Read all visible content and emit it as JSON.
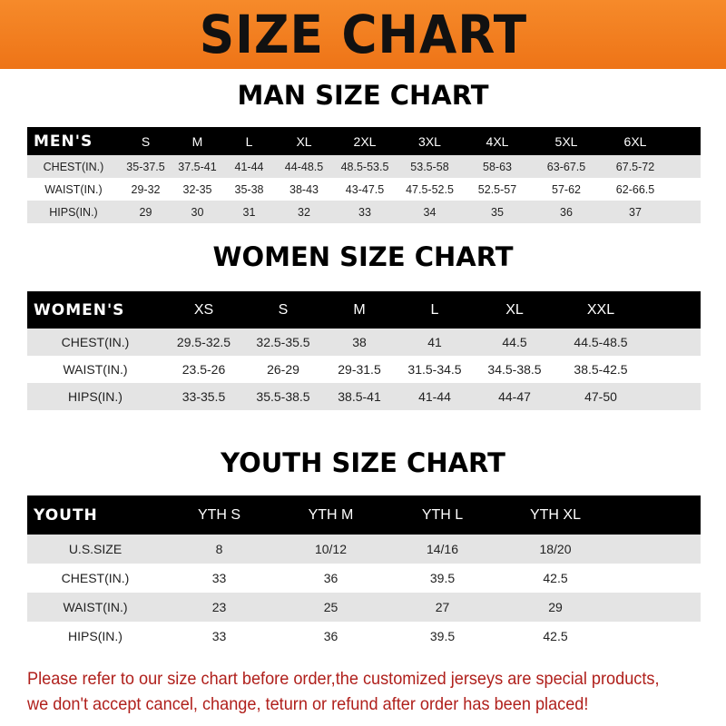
{
  "banner_title": "SIZE CHART",
  "men": {
    "heading": "MAN SIZE CHART",
    "header": [
      "MEN'S",
      "S",
      "M",
      "L",
      "XL",
      "2XL",
      "3XL",
      "4XL",
      "5XL",
      "6XL"
    ],
    "rows": [
      [
        "CHEST(IN.)",
        "35-37.5",
        "37.5-41",
        "41-44",
        "44-48.5",
        "48.5-53.5",
        "53.5-58",
        "58-63",
        "63-67.5",
        "67.5-72"
      ],
      [
        "WAIST(IN.)",
        "29-32",
        "32-35",
        "35-38",
        "38-43",
        "43-47.5",
        "47.5-52.5",
        "52.5-57",
        "57-62",
        "62-66.5"
      ],
      [
        "HIPS(IN.)",
        "29",
        "30",
        "31",
        "32",
        "33",
        "34",
        "35",
        "36",
        "37"
      ]
    ]
  },
  "women": {
    "heading": "WOMEN SIZE CHART",
    "header": [
      "WOMEN'S",
      "XS",
      "S",
      "M",
      "L",
      "XL",
      "XXL"
    ],
    "rows": [
      [
        "CHEST(IN.)",
        "29.5-32.5",
        "32.5-35.5",
        "38",
        "41",
        "44.5",
        "44.5-48.5"
      ],
      [
        "WAIST(IN.)",
        "23.5-26",
        "26-29",
        "29-31.5",
        "31.5-34.5",
        "34.5-38.5",
        "38.5-42.5"
      ],
      [
        "HIPS(IN.)",
        "33-35.5",
        "35.5-38.5",
        "38.5-41",
        "41-44",
        "44-47",
        "47-50"
      ]
    ]
  },
  "youth": {
    "heading": "YOUTH SIZE CHART",
    "header": [
      "YOUTH",
      "YTH S",
      "YTH M",
      "YTH L",
      "YTH XL"
    ],
    "rows": [
      [
        "U.S.SIZE",
        "8",
        "10/12",
        "14/16",
        "18/20"
      ],
      [
        "CHEST(IN.)",
        "33",
        "36",
        "39.5",
        "42.5"
      ],
      [
        "WAIST(IN.)",
        "23",
        "25",
        "27",
        "29"
      ],
      [
        "HIPS(IN.)",
        "33",
        "36",
        "39.5",
        "42.5"
      ]
    ]
  },
  "notice": {
    "line1": "Please refer to our size chart before order,the customized jerseys are special products,",
    "line2": "we don't accept cancel, change, teturn or refund after order has been placed!"
  },
  "colors": {
    "banner": "#f07a1a",
    "header_row": "#000000",
    "stripe": "#e4e4e4",
    "notice": "#b0201c"
  }
}
